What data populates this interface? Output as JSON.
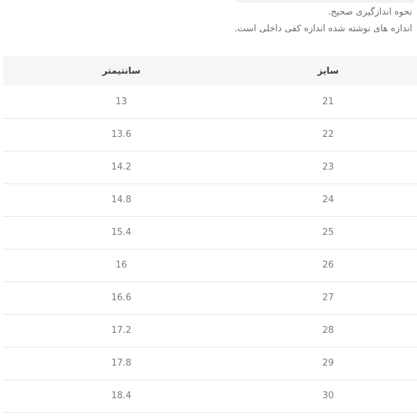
{
  "intro": {
    "line1": "نحوه اندازگیری صحیح.",
    "line2": "اندازه های نوشته شده اندازه کفی داخلی است."
  },
  "size_table": {
    "columns": [
      {
        "key": "size",
        "label": "سایز"
      },
      {
        "key": "cm",
        "label": "سانتیمتر"
      }
    ],
    "rows": [
      {
        "size": "21",
        "cm": "13"
      },
      {
        "size": "22",
        "cm": "13.6"
      },
      {
        "size": "23",
        "cm": "14.2"
      },
      {
        "size": "24",
        "cm": "14.8"
      },
      {
        "size": "25",
        "cm": "15.4"
      },
      {
        "size": "26",
        "cm": "16"
      },
      {
        "size": "27",
        "cm": "16.6"
      },
      {
        "size": "28",
        "cm": "17.2"
      },
      {
        "size": "29",
        "cm": "17.8"
      },
      {
        "size": "30",
        "cm": "18.4"
      }
    ]
  },
  "colors": {
    "header_bg": "#f6f6f6",
    "divider": "#e6e6e6",
    "header_text": "#3d3d3d",
    "cell_text": "#7a7a7a",
    "intro_text": "#6b6b6b",
    "top_bar": "#f2f2f2"
  }
}
